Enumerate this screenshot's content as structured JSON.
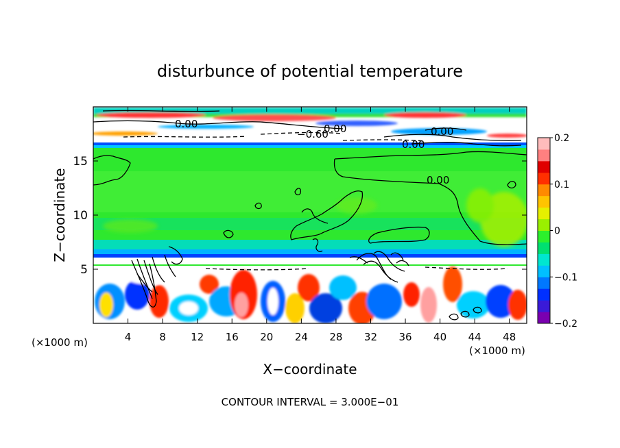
{
  "chart_data": {
    "type": "heatmap",
    "title": "disturbunce of potential temperature",
    "xlabel": "X−coordinate",
    "ylabel": "Z−coordinate",
    "x_unit": "(×1000 m)",
    "z_unit": "(×1000 m)",
    "xlim": [
      0,
      50
    ],
    "ylim": [
      0,
      20
    ],
    "x_ticks": [
      "4",
      "8",
      "12",
      "16",
      "20",
      "24",
      "28",
      "32",
      "36",
      "40",
      "44",
      "48"
    ],
    "y_ticks": [
      "5",
      "10",
      "15"
    ],
    "colorbar": {
      "min": -0.2,
      "max": 0.2,
      "tick_labels": [
        "0.2",
        "0.1",
        "0",
        "−0.1",
        "−0.2"
      ],
      "colors": [
        "#7a00b0",
        "#3a1ad8",
        "#0030ff",
        "#0078ff",
        "#00c0ff",
        "#00e6d0",
        "#00e070",
        "#2cf02c",
        "#9af000",
        "#e6f000",
        "#ffc400",
        "#ff8a00",
        "#ff3000",
        "#e00000",
        "#ff8080",
        "#ffbcbc"
      ]
    },
    "contour_labels": [
      "0.00",
      "−0.60",
      "0.00",
      "0.00",
      "0.00",
      "0.00"
    ],
    "footer": "CONTOUR INTERVAL = 3.000E−01"
  }
}
